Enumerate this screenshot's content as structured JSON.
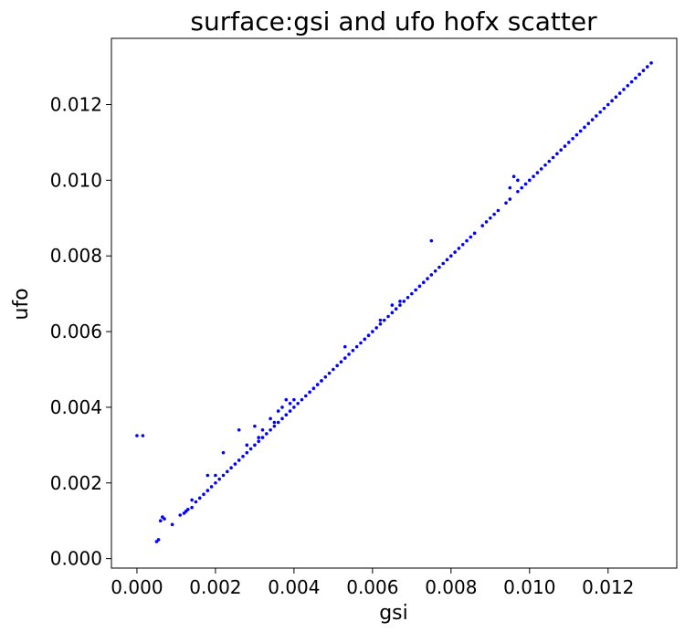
{
  "chart_data": {
    "type": "scatter",
    "title": "surface:gsi and ufo hofx scatter",
    "xlabel": "gsi",
    "ylabel": "ufo",
    "xlim": [
      -0.00065,
      0.01375
    ],
    "ylim": [
      -0.00025,
      0.01375
    ],
    "xticks": [
      0.0,
      0.002,
      0.004,
      0.006,
      0.008,
      0.01,
      0.012
    ],
    "xtick_labels": [
      "0.000",
      "0.002",
      "0.004",
      "0.006",
      "0.008",
      "0.010",
      "0.012"
    ],
    "yticks": [
      0.0,
      0.002,
      0.004,
      0.006,
      0.008,
      0.01,
      0.012
    ],
    "ytick_labels": [
      "0.000",
      "0.002",
      "0.004",
      "0.006",
      "0.008",
      "0.010",
      "0.012"
    ],
    "grid": false,
    "legend": "none",
    "marker_color": "#0000ff",
    "series": [
      {
        "x": [
          0.0,
          0.0005,
          0.00055,
          0.0006,
          0.00065,
          0.0009,
          0.0011,
          0.0012,
          0.00125,
          0.0013,
          0.0014,
          0.0015,
          0.0016,
          0.0017,
          0.0018,
          0.0019,
          0.002,
          0.0021,
          0.0022,
          0.0023,
          0.0024,
          0.0025,
          0.0026,
          0.0027,
          0.0028,
          0.0029,
          0.003,
          0.0031,
          0.0032,
          0.0033,
          0.0034,
          0.0035,
          0.0036,
          0.0037,
          0.0038,
          0.0039,
          0.004,
          0.0041,
          0.0042,
          0.0043,
          0.0044,
          0.0045,
          0.0046,
          0.0047,
          0.0048,
          0.0049,
          0.005,
          0.0051,
          0.0052,
          0.0053,
          0.0054,
          0.0055,
          0.0056,
          0.0057,
          0.0058,
          0.0059,
          0.006,
          0.0061,
          0.0062,
          0.0063,
          0.0064,
          0.0065,
          0.0066,
          0.0067,
          0.0068,
          0.0069,
          0.007,
          0.0071,
          0.0072,
          0.0073,
          0.0074,
          0.0075,
          0.0076,
          0.0077,
          0.0078,
          0.0079,
          0.008,
          0.0081,
          0.0082,
          0.0083,
          0.0084,
          0.0085,
          0.0088,
          0.0089,
          0.009,
          0.0091,
          0.0092,
          0.0094,
          0.0095,
          0.0097,
          0.0098,
          0.0099,
          0.01,
          0.0101,
          0.0102,
          0.0103,
          0.0104,
          0.0105,
          0.0106,
          0.0107,
          0.0108,
          0.0109,
          0.011,
          0.0111,
          0.0112,
          0.0113,
          0.0114,
          0.0115,
          0.0116,
          0.0117,
          0.0118,
          0.0119,
          0.012,
          0.0121,
          0.0122,
          0.0123,
          0.0124,
          0.0125,
          0.0126,
          0.0127,
          0.0128,
          0.0129,
          0.013,
          0.0131,
          0.00015,
          0.0007,
          0.0014,
          0.0018,
          0.002,
          0.0022,
          0.0026,
          0.0028,
          0.003,
          0.0031,
          0.0032,
          0.0034,
          0.0035,
          0.0036,
          0.0037,
          0.0038,
          0.0039,
          0.004,
          0.0047,
          0.0053,
          0.0062,
          0.0065,
          0.0067,
          0.0075,
          0.0086,
          0.0095,
          0.0096,
          0.0097
        ],
        "y": [
          0.00325,
          0.00045,
          0.0005,
          0.001,
          0.0011,
          0.0009,
          0.00115,
          0.0012,
          0.00125,
          0.0013,
          0.00135,
          0.0015,
          0.0016,
          0.0017,
          0.0018,
          0.0019,
          0.002,
          0.0021,
          0.0022,
          0.0023,
          0.0024,
          0.0025,
          0.0026,
          0.0027,
          0.0028,
          0.0029,
          0.003,
          0.0031,
          0.0032,
          0.0033,
          0.0034,
          0.0035,
          0.0036,
          0.0037,
          0.0038,
          0.0039,
          0.004,
          0.0041,
          0.0042,
          0.0043,
          0.0044,
          0.0045,
          0.0046,
          0.0047,
          0.0048,
          0.0049,
          0.005,
          0.0051,
          0.0052,
          0.0053,
          0.0054,
          0.0055,
          0.0056,
          0.0057,
          0.0058,
          0.0059,
          0.006,
          0.0061,
          0.0062,
          0.0063,
          0.0064,
          0.0065,
          0.0066,
          0.0067,
          0.0068,
          0.0069,
          0.007,
          0.0071,
          0.0072,
          0.0073,
          0.0074,
          0.0075,
          0.0076,
          0.0077,
          0.0078,
          0.0079,
          0.008,
          0.0081,
          0.0082,
          0.0083,
          0.0084,
          0.0085,
          0.0088,
          0.0089,
          0.009,
          0.0091,
          0.0092,
          0.0094,
          0.0095,
          0.0097,
          0.0098,
          0.0099,
          0.01,
          0.0101,
          0.0102,
          0.0103,
          0.0104,
          0.0105,
          0.0106,
          0.0107,
          0.0108,
          0.0109,
          0.011,
          0.0111,
          0.0112,
          0.0113,
          0.0114,
          0.0115,
          0.0116,
          0.0117,
          0.0118,
          0.0119,
          0.012,
          0.0121,
          0.0122,
          0.0123,
          0.0124,
          0.0125,
          0.0126,
          0.0127,
          0.0128,
          0.0129,
          0.013,
          0.0131,
          0.00325,
          0.00105,
          0.00155,
          0.0022,
          0.0022,
          0.0028,
          0.0034,
          0.003,
          0.0035,
          0.0032,
          0.0034,
          0.0037,
          0.0036,
          0.0039,
          0.004,
          0.0042,
          0.0041,
          0.0042,
          0.0047,
          0.0056,
          0.0063,
          0.0067,
          0.0068,
          0.0084,
          0.0086,
          0.0098,
          0.0101,
          0.01
        ]
      }
    ]
  }
}
